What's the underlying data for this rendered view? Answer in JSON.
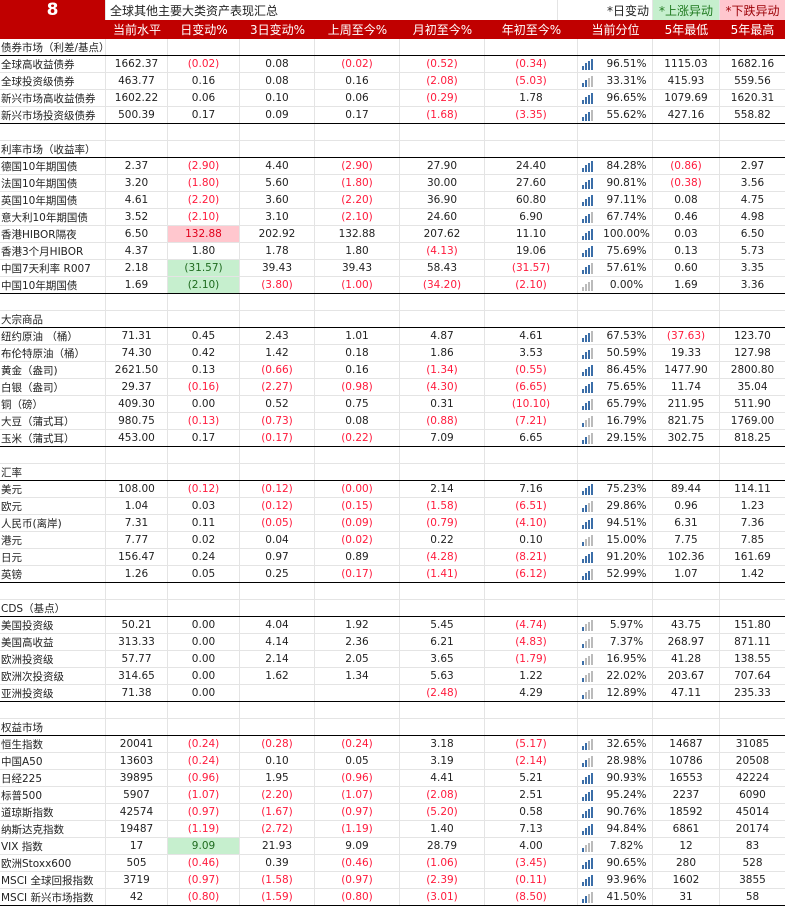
{
  "title": {
    "number": "8",
    "text": "全球其他主要大类资产表现汇总",
    "legend_day": "*日变动",
    "legend_up": "*上涨异动",
    "legend_down": "*下跌异动"
  },
  "colors": {
    "header": "#c00000",
    "up_bg": "#c6efce",
    "down_bg": "#ffc7ce",
    "negative": "#ff1a3c",
    "bar": "#3b6ea8"
  },
  "headers": [
    "",
    "当前水平",
    "日变动%",
    "3日变动%",
    "上周至今%",
    "月初至今%",
    "年初至今%",
    "当前分位",
    "5年最低",
    "5年最高"
  ],
  "sections": [
    {
      "label": "债券市场（利差/基点）",
      "rows": [
        {
          "name": "全球高收益债券",
          "values": [
            "1662.37",
            "(0.02)",
            "0.08",
            "(0.02)",
            "(0.52)",
            "(0.34)",
            "96.51%",
            "1115.03",
            "1682.16"
          ]
        },
        {
          "name": "全球投资级债券",
          "values": [
            "463.77",
            "0.16",
            "0.08",
            "0.16",
            "(2.08)",
            "(5.03)",
            "33.31%",
            "415.93",
            "559.56"
          ]
        },
        {
          "name": "新兴市场高收益债券",
          "values": [
            "1602.22",
            "0.06",
            "0.10",
            "0.06",
            "(0.29)",
            "1.78",
            "96.65%",
            "1079.69",
            "1620.31"
          ]
        },
        {
          "name": "新兴市场投资级债券",
          "values": [
            "500.39",
            "0.17",
            "0.09",
            "0.17",
            "(1.68)",
            "(3.35)",
            "55.62%",
            "427.16",
            "558.82"
          ]
        }
      ]
    },
    {
      "label": "利率市场（收益率）",
      "rows": [
        {
          "name": "德国10年期国债",
          "values": [
            "2.37",
            "(2.90)",
            "4.40",
            "(2.90)",
            "27.90",
            "24.40",
            "84.28%",
            "(0.86)",
            "2.97"
          ]
        },
        {
          "name": "法国10年期国债",
          "values": [
            "3.20",
            "(1.80)",
            "5.60",
            "(1.80)",
            "30.00",
            "27.60",
            "90.81%",
            "(0.38)",
            "3.56"
          ]
        },
        {
          "name": "英国10年期国债",
          "values": [
            "4.61",
            "(2.20)",
            "3.60",
            "(2.20)",
            "36.90",
            "60.80",
            "97.11%",
            "0.08",
            "4.75"
          ]
        },
        {
          "name": "意大利10年期国债",
          "values": [
            "3.52",
            "(2.10)",
            "3.10",
            "(2.10)",
            "24.60",
            "6.90",
            "67.74%",
            "0.46",
            "4.98"
          ]
        },
        {
          "name": "香港HIBOR隔夜",
          "values": [
            "6.50",
            "132.88",
            "202.92",
            "132.88",
            "207.62",
            "11.10",
            "100.00%",
            "0.03",
            "6.50"
          ],
          "highlight": "down"
        },
        {
          "name": "香港3个月HIBOR",
          "values": [
            "4.37",
            "1.80",
            "1.78",
            "1.80",
            "(4.13)",
            "19.06",
            "75.69%",
            "0.13",
            "5.73"
          ]
        },
        {
          "name": "中国7天利率 R007",
          "values": [
            "2.18",
            "(31.57)",
            "39.43",
            "39.43",
            "58.43",
            "(31.57)",
            "57.61%",
            "0.60",
            "3.35"
          ],
          "highlight": "up"
        },
        {
          "name": "中国10年期国债",
          "values": [
            "1.69",
            "(2.10)",
            "(3.80)",
            "(1.00)",
            "(34.20)",
            "(2.10)",
            "0.00%",
            "1.69",
            "3.36"
          ],
          "highlight": "up"
        }
      ]
    },
    {
      "label": "大宗商品",
      "rows": [
        {
          "name": "纽约原油 （桶）",
          "values": [
            "71.31",
            "0.45",
            "2.43",
            "1.01",
            "4.87",
            "4.61",
            "67.53%",
            "(37.63)",
            "123.70"
          ]
        },
        {
          "name": "布伦特原油（桶）",
          "values": [
            "74.30",
            "0.42",
            "1.42",
            "0.18",
            "1.86",
            "3.53",
            "50.59%",
            "19.33",
            "127.98"
          ]
        },
        {
          "name": "黄金（盎司)",
          "values": [
            "2621.50",
            "0.13",
            "(0.66)",
            "0.16",
            "(1.34)",
            "(0.55)",
            "86.45%",
            "1477.90",
            "2800.80"
          ]
        },
        {
          "name": "白银（盎司）",
          "values": [
            "29.37",
            "(0.16)",
            "(2.27)",
            "(0.98)",
            "(4.30)",
            "(6.65)",
            "75.65%",
            "11.74",
            "35.04"
          ]
        },
        {
          "name": "铜（磅）",
          "values": [
            "409.30",
            "0.00",
            "0.52",
            "0.75",
            "0.31",
            "(10.10)",
            "65.79%",
            "211.95",
            "511.90"
          ]
        },
        {
          "name": "大豆（蒲式耳）",
          "values": [
            "980.75",
            "(0.13)",
            "(0.73)",
            "0.08",
            "(0.88)",
            "(7.21)",
            "16.79%",
            "821.75",
            "1769.00"
          ]
        },
        {
          "name": "玉米（蒲式耳）",
          "values": [
            "453.00",
            "0.17",
            "(0.17)",
            "(0.22)",
            "7.09",
            "6.65",
            "29.15%",
            "302.75",
            "818.25"
          ]
        }
      ]
    },
    {
      "label": "汇率",
      "rows": [
        {
          "name": "美元",
          "values": [
            "108.00",
            "(0.12)",
            "(0.12)",
            "(0.00)",
            "2.14",
            "7.16",
            "75.23%",
            "89.44",
            "114.11"
          ]
        },
        {
          "name": "欧元",
          "values": [
            "1.04",
            "0.03",
            "(0.12)",
            "(0.15)",
            "(1.58)",
            "(6.51)",
            "29.86%",
            "0.96",
            "1.23"
          ]
        },
        {
          "name": "人民币(离岸)",
          "values": [
            "7.31",
            "0.11",
            "(0.05)",
            "(0.09)",
            "(0.79)",
            "(4.10)",
            "94.51%",
            "6.31",
            "7.36"
          ]
        },
        {
          "name": "港元",
          "values": [
            "7.77",
            "0.02",
            "0.04",
            "(0.02)",
            "0.22",
            "0.10",
            "15.00%",
            "7.75",
            "7.85"
          ]
        },
        {
          "name": "日元",
          "values": [
            "156.47",
            "0.24",
            "0.97",
            "0.89",
            "(4.28)",
            "(8.21)",
            "91.20%",
            "102.36",
            "161.69"
          ]
        },
        {
          "name": "英镑",
          "values": [
            "1.26",
            "0.05",
            "0.25",
            "(0.17)",
            "(1.41)",
            "(6.12)",
            "52.99%",
            "1.07",
            "1.42"
          ]
        }
      ]
    },
    {
      "label": "CDS（基点）",
      "rows": [
        {
          "name": "美国投资级",
          "values": [
            "50.21",
            "0.00",
            "4.04",
            "1.92",
            "5.45",
            "(4.74)",
            "5.97%",
            "43.75",
            "151.80"
          ]
        },
        {
          "name": "美国高收益",
          "values": [
            "313.33",
            "0.00",
            "4.14",
            "2.36",
            "6.21",
            "(4.83)",
            "7.37%",
            "268.97",
            "871.11"
          ]
        },
        {
          "name": "欧洲投资级",
          "values": [
            "57.77",
            "0.00",
            "2.14",
            "2.05",
            "3.65",
            "(1.79)",
            "16.95%",
            "41.28",
            "138.55"
          ]
        },
        {
          "name": "欧洲次投资级",
          "values": [
            "314.65",
            "0.00",
            "1.62",
            "1.34",
            "5.63",
            "1.22",
            "22.02%",
            "203.67",
            "707.64"
          ]
        },
        {
          "name": "亚洲投资级",
          "values": [
            "71.38",
            "0.00",
            "",
            "",
            "(2.48)",
            "4.29",
            "12.89%",
            "47.11",
            "235.33"
          ]
        }
      ]
    },
    {
      "label": "权益市场",
      "rows": [
        {
          "name": "恒生指数",
          "values": [
            "20041",
            "(0.24)",
            "(0.28)",
            "(0.24)",
            "3.18",
            "(5.17)",
            "32.65%",
            "14687",
            "31085"
          ]
        },
        {
          "name": "中国A50",
          "values": [
            "13603",
            "(0.24)",
            "0.10",
            "0.05",
            "3.19",
            "(2.14)",
            "28.98%",
            "10786",
            "20508"
          ]
        },
        {
          "name": "日经225",
          "values": [
            "39895",
            "(0.96)",
            "1.95",
            "(0.96)",
            "4.41",
            "5.21",
            "90.93%",
            "16553",
            "42224"
          ]
        },
        {
          "name": "标普500",
          "values": [
            "5907",
            "(1.07)",
            "(2.20)",
            "(1.07)",
            "(2.08)",
            "2.51",
            "95.24%",
            "2237",
            "6090"
          ]
        },
        {
          "name": "道琼斯指数",
          "values": [
            "42574",
            "(0.97)",
            "(1.67)",
            "(0.97)",
            "(5.20)",
            "0.58",
            "90.76%",
            "18592",
            "45014"
          ]
        },
        {
          "name": "纳斯达克指数",
          "values": [
            "19487",
            "(1.19)",
            "(2.72)",
            "(1.19)",
            "1.40",
            "7.13",
            "94.84%",
            "6861",
            "20174"
          ]
        },
        {
          "name": "VIX 指数",
          "values": [
            "17",
            "9.09",
            "21.93",
            "9.09",
            "28.79",
            "4.00",
            "7.82%",
            "12",
            "83"
          ],
          "highlight": "up"
        },
        {
          "name": "欧洲Stoxx600",
          "values": [
            "505",
            "(0.46)",
            "0.39",
            "(0.46)",
            "(1.06)",
            "(3.45)",
            "90.65%",
            "280",
            "528"
          ]
        },
        {
          "name": "MSCI 全球回报指数",
          "values": [
            "3719",
            "(0.97)",
            "(1.58)",
            "(0.97)",
            "(2.39)",
            "(0.11)",
            "93.96%",
            "1602",
            "3855"
          ]
        },
        {
          "name": "MSCI 新兴市场指数",
          "values": [
            "42",
            "(0.80)",
            "(1.59)",
            "(0.80)",
            "(3.01)",
            "(8.50)",
            "41.50%",
            "31",
            "58"
          ]
        }
      ]
    }
  ]
}
